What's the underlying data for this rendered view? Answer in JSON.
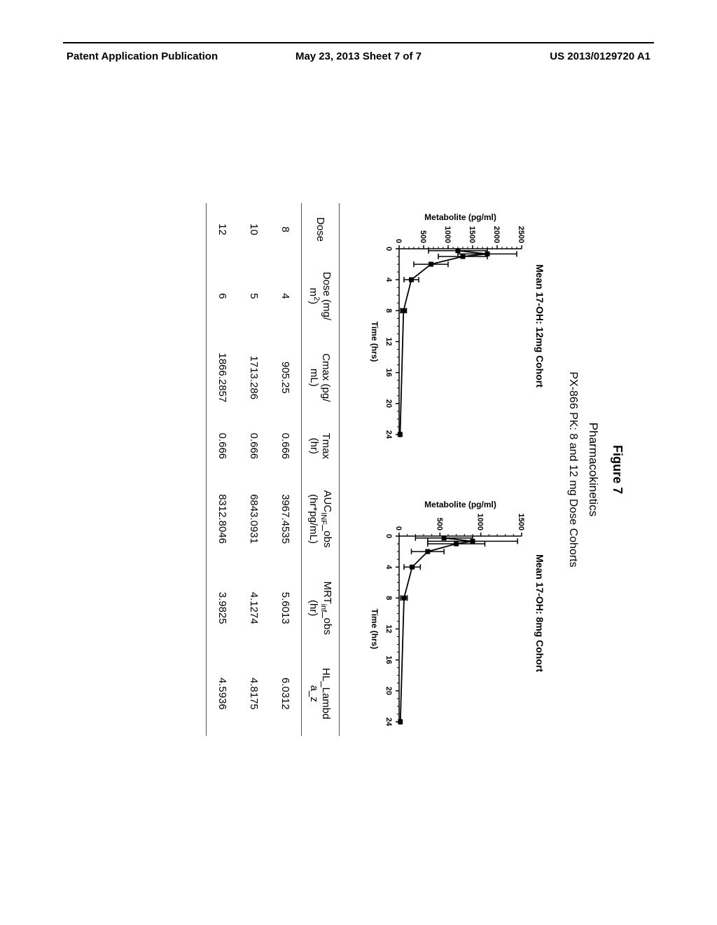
{
  "header": {
    "left": "Patent Application Publication",
    "center": "May 23, 2013  Sheet 7 of 7",
    "right": "US 2013/0129720 A1"
  },
  "figure": {
    "title": "Figure 7",
    "subtitle": "Pharmacokinetics",
    "subsubtitle": "PX-866 PK: 8 and 12 mg Dose Cohorts",
    "charts": [
      {
        "title": "Mean 17-OH: 12mg Cohort",
        "xlabel": "Time (hrs)",
        "ylabel": "Metabolite (pg/ml)",
        "xlim": [
          0,
          24
        ],
        "xtick_step": 4,
        "ylim": [
          0,
          2500
        ],
        "ytick_step": 500,
        "data": [
          {
            "x": 0.25,
            "y": 1200,
            "err": 600
          },
          {
            "x": 0.666,
            "y": 1800,
            "err": 600
          },
          {
            "x": 1,
            "y": 1300,
            "err": 500
          },
          {
            "x": 2,
            "y": 650,
            "err": 350
          },
          {
            "x": 4,
            "y": 250,
            "err": 150
          },
          {
            "x": 8,
            "y": 90,
            "err": 60
          },
          {
            "x": 24,
            "y": 20,
            "err": 15
          }
        ],
        "line_color": "#000000",
        "background": "#ffffff",
        "axis_color": "#000000"
      },
      {
        "title": "Mean 17-OH: 8mg Cohort",
        "xlabel": "Time (hrs)",
        "ylabel": "Metabolite (pg/ml)",
        "xlim": [
          0,
          24
        ],
        "xtick_step": 4,
        "ylim": [
          0,
          1500
        ],
        "ytick_step": 500,
        "data": [
          {
            "x": 0.25,
            "y": 550,
            "err": 350
          },
          {
            "x": 0.666,
            "y": 900,
            "err": 550
          },
          {
            "x": 1,
            "y": 700,
            "err": 350
          },
          {
            "x": 2,
            "y": 350,
            "err": 200
          },
          {
            "x": 4,
            "y": 160,
            "err": 100
          },
          {
            "x": 8,
            "y": 60,
            "err": 40
          },
          {
            "x": 24,
            "y": 15,
            "err": 10
          }
        ],
        "line_color": "#000000",
        "background": "#ffffff",
        "axis_color": "#000000"
      }
    ],
    "table": {
      "columns": [
        "Dose",
        "Dose (mg/m²)",
        "Cmax (pg/mL)",
        "Tmax (hr)",
        "AUC_INF_obs (hr*pg/mL)",
        "MRT_inf_obs (hr)",
        "HL_Lambda_z"
      ],
      "rows": [
        [
          "8",
          "4",
          "905.25",
          "0.666",
          "3967.4535",
          "5.6013",
          "6.0312"
        ],
        [
          "10",
          "5",
          "1713.286",
          "0.666",
          "6843.0931",
          "4.1274",
          "4.8175"
        ],
        [
          "12",
          "6",
          "1866.2857",
          "0.666",
          "8312.8046",
          "3.9825",
          "4.5936"
        ]
      ]
    }
  }
}
